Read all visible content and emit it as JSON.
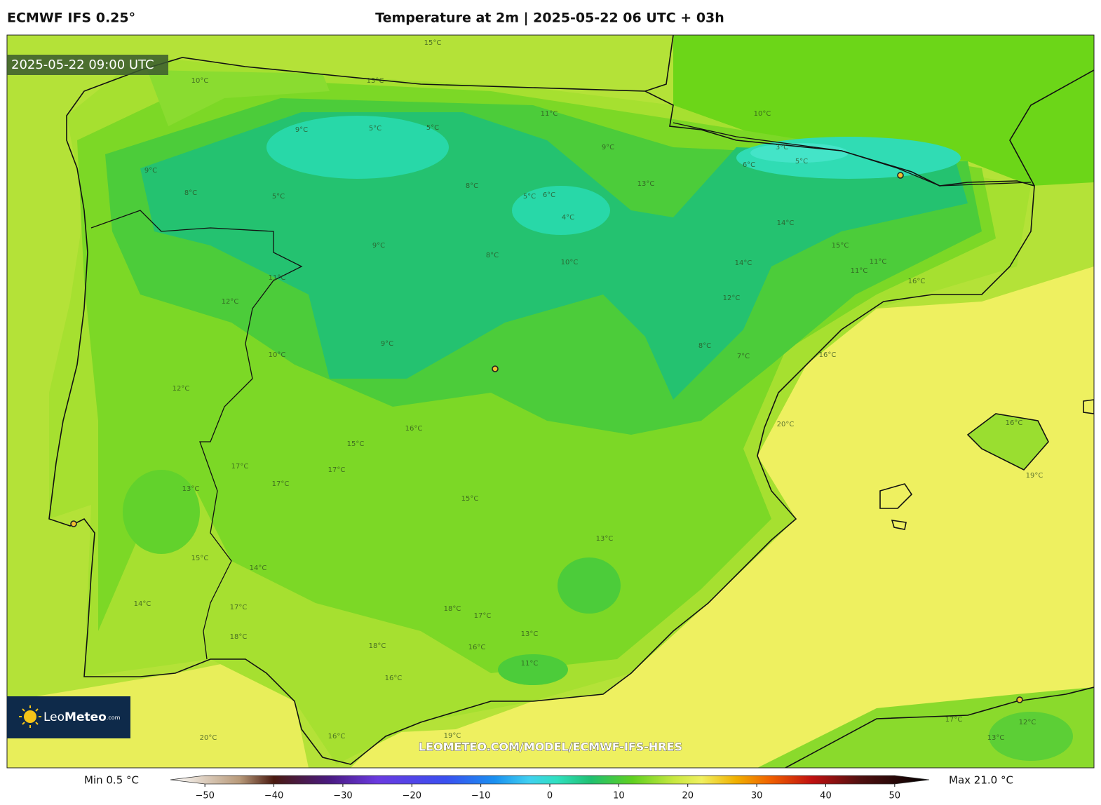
{
  "header": {
    "model": "ECMWF IFS 0.25°",
    "title": "Temperature at 2m | 2025-05-22 06 UTC + 03h"
  },
  "map": {
    "valid_time": "2025-05-22 09:00 UTC",
    "watermark": "LEOMETEO.COM/MODEL/ECMWF-IFS-HRES",
    "logo": {
      "brand_light": "Leo",
      "brand_bold": "Meteo",
      "suffix": ".com"
    },
    "contour_labels": [
      "15°C",
      "10°C",
      "13°C",
      "11°C",
      "10°C",
      "9°C",
      "5°C",
      "5°C",
      "9°C",
      "3°C",
      "5°C",
      "6°C",
      "9°C",
      "8°C",
      "5°C",
      "8°C",
      "13°C",
      "4°C",
      "5°C",
      "6°C",
      "14°C",
      "15°C",
      "14°C",
      "11°C",
      "11°C",
      "8°C",
      "10°C",
      "11°C",
      "16°C",
      "9°C",
      "12°C",
      "12°C",
      "10°C",
      "9°C",
      "8°C",
      "7°C",
      "12°C",
      "16°C",
      "20°C",
      "16°C",
      "15°C",
      "17°C",
      "17°C",
      "17°C",
      "13°C",
      "15°C",
      "13°C",
      "15°C",
      "14°C",
      "14°C",
      "18°C",
      "17°C",
      "17°C",
      "18°C",
      "13°C",
      "18°C",
      "16°C",
      "11°C",
      "16°C",
      "19°C",
      "16°C",
      "20°C",
      "19°C",
      "16°C",
      "12°C",
      "13°C",
      "17°C"
    ]
  },
  "colorbar": {
    "min_label": "Min 0.5 °C",
    "max_label": "Max 21.0 °C",
    "xlim": [
      -55,
      55
    ],
    "xticks": [
      {
        "value": -50,
        "label": "−50"
      },
      {
        "value": -40,
        "label": "−40"
      },
      {
        "value": -30,
        "label": "−30"
      },
      {
        "value": -20,
        "label": "−20"
      },
      {
        "value": -10,
        "label": "−10"
      },
      0,
      10,
      20,
      30,
      40,
      50
    ],
    "stops": [
      {
        "value": -55,
        "color": "#ffffff"
      },
      {
        "value": -45,
        "color": "#b89a7a"
      },
      {
        "value": -40,
        "color": "#4a1a10"
      },
      {
        "value": -32,
        "color": "#4a1a80"
      },
      {
        "value": -25,
        "color": "#6a3ae0"
      },
      {
        "value": -15,
        "color": "#3a50f0"
      },
      {
        "value": -8,
        "color": "#1a90f0"
      },
      {
        "value": -3,
        "color": "#40d0f0"
      },
      {
        "value": 1,
        "color": "#30e0c0"
      },
      {
        "value": 6,
        "color": "#20c070"
      },
      {
        "value": 12,
        "color": "#60d020"
      },
      {
        "value": 18,
        "color": "#c8e840"
      },
      {
        "value": 22,
        "color": "#f0f060"
      },
      {
        "value": 27,
        "color": "#f0b000"
      },
      {
        "value": 32,
        "color": "#f06000"
      },
      {
        "value": 38,
        "color": "#c01010"
      },
      {
        "value": 45,
        "color": "#501010"
      },
      {
        "value": 55,
        "color": "#000000"
      }
    ]
  }
}
